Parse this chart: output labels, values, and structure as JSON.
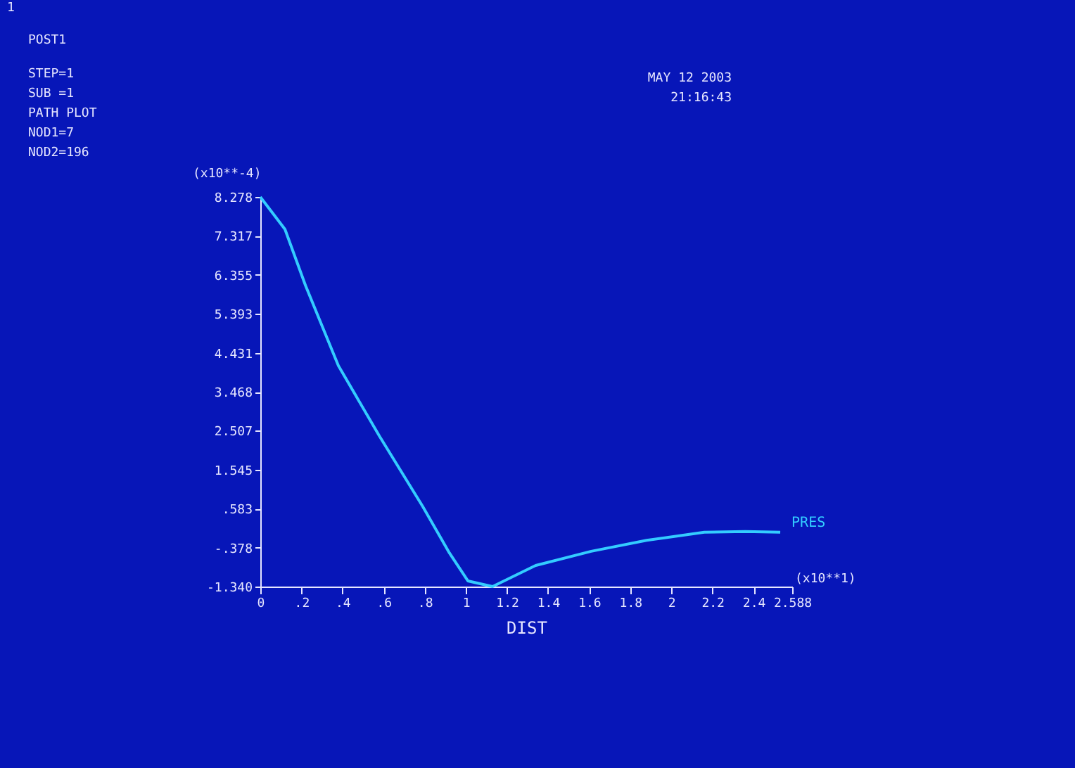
{
  "chart_data": {
    "type": "line",
    "xlabel": "DIST",
    "annotations": [
      "1",
      "POST1",
      "STEP=1",
      "SUB =1",
      "PATH PLOT",
      "NOD1=7",
      "NOD2=196",
      "MAY 12 2003",
      "21:16:43",
      "(x10**-4)",
      "(x10**1)"
    ],
    "x": [
      0,
      0.12,
      0.22,
      0.38,
      0.58,
      0.79,
      0.92,
      1.01,
      1.13,
      1.34,
      1.61,
      1.88,
      2.16,
      2.36,
      2.53
    ],
    "series": [
      {
        "name": "PRES",
        "color": "#33ccff",
        "values": [
          8.278,
          7.48,
          6.09,
          4.11,
          2.37,
          0.64,
          -0.51,
          -1.2,
          -1.34,
          -0.82,
          -0.47,
          -0.2,
          0.0,
          0.02,
          0.0
        ]
      }
    ],
    "xlim": [
      0,
      2.588
    ],
    "ylim": [
      -1.34,
      8.278
    ],
    "xticks": [
      0,
      {
        "value": 0.2,
        "label": ".2"
      },
      {
        "value": 0.4,
        "label": ".4"
      },
      {
        "value": 0.6,
        "label": ".6"
      },
      {
        "value": 0.8,
        "label": ".8"
      },
      1,
      1.2,
      1.4,
      1.6,
      1.8,
      2,
      2.2,
      2.4,
      2.588
    ],
    "yticks": [
      {
        "value": -1.34,
        "label": "-1.340"
      },
      {
        "value": -0.378,
        "label": "-.378"
      },
      {
        "value": 0.583,
        "label": ".583"
      },
      1.545,
      2.507,
      3.468,
      4.431,
      5.393,
      6.355,
      7.317,
      8.278
    ],
    "grid": false,
    "marker": "none",
    "line_style": "solid"
  }
}
